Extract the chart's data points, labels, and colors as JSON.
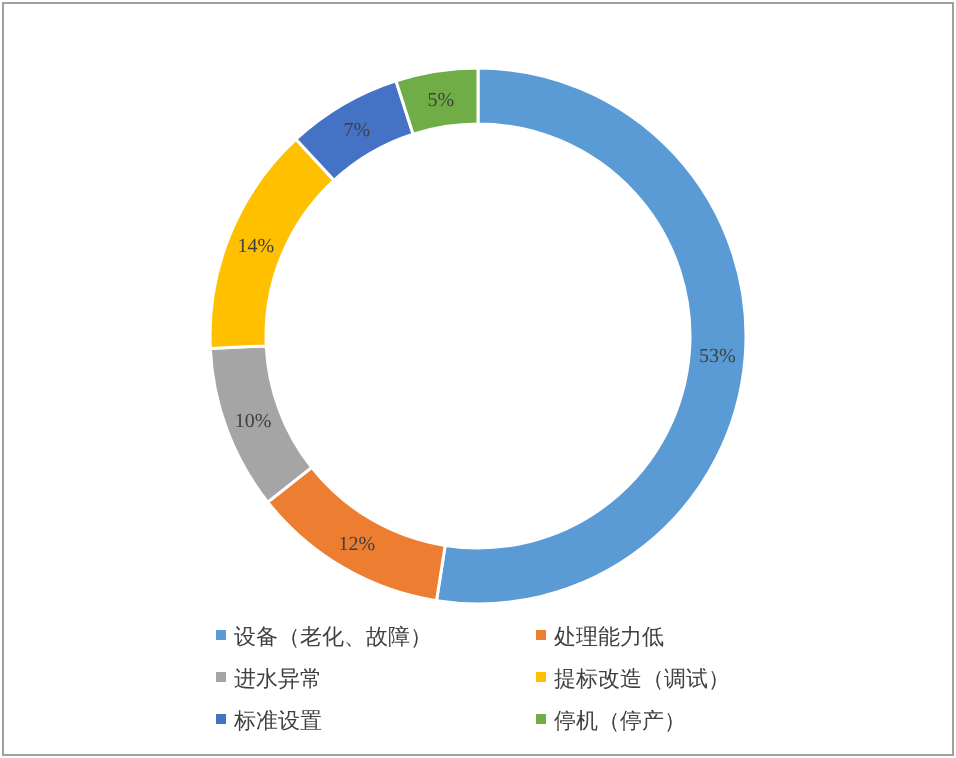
{
  "chart_data": {
    "type": "donut",
    "categories": [
      "设备（老化、故障）",
      "处理能力低",
      "进水异常",
      "提标改造（调试）",
      "标准设置",
      "停机（停产）"
    ],
    "values": [
      53,
      12,
      10,
      14,
      7,
      5
    ],
    "colors": [
      "#5b9bd5",
      "#ed7d31",
      "#a5a5a5",
      "#ffc000",
      "#4472c4",
      "#70ad47"
    ],
    "value_labels": [
      "53%",
      "12%",
      "10%",
      "14%",
      "7%",
      "5%"
    ],
    "legend": "bottom"
  }
}
